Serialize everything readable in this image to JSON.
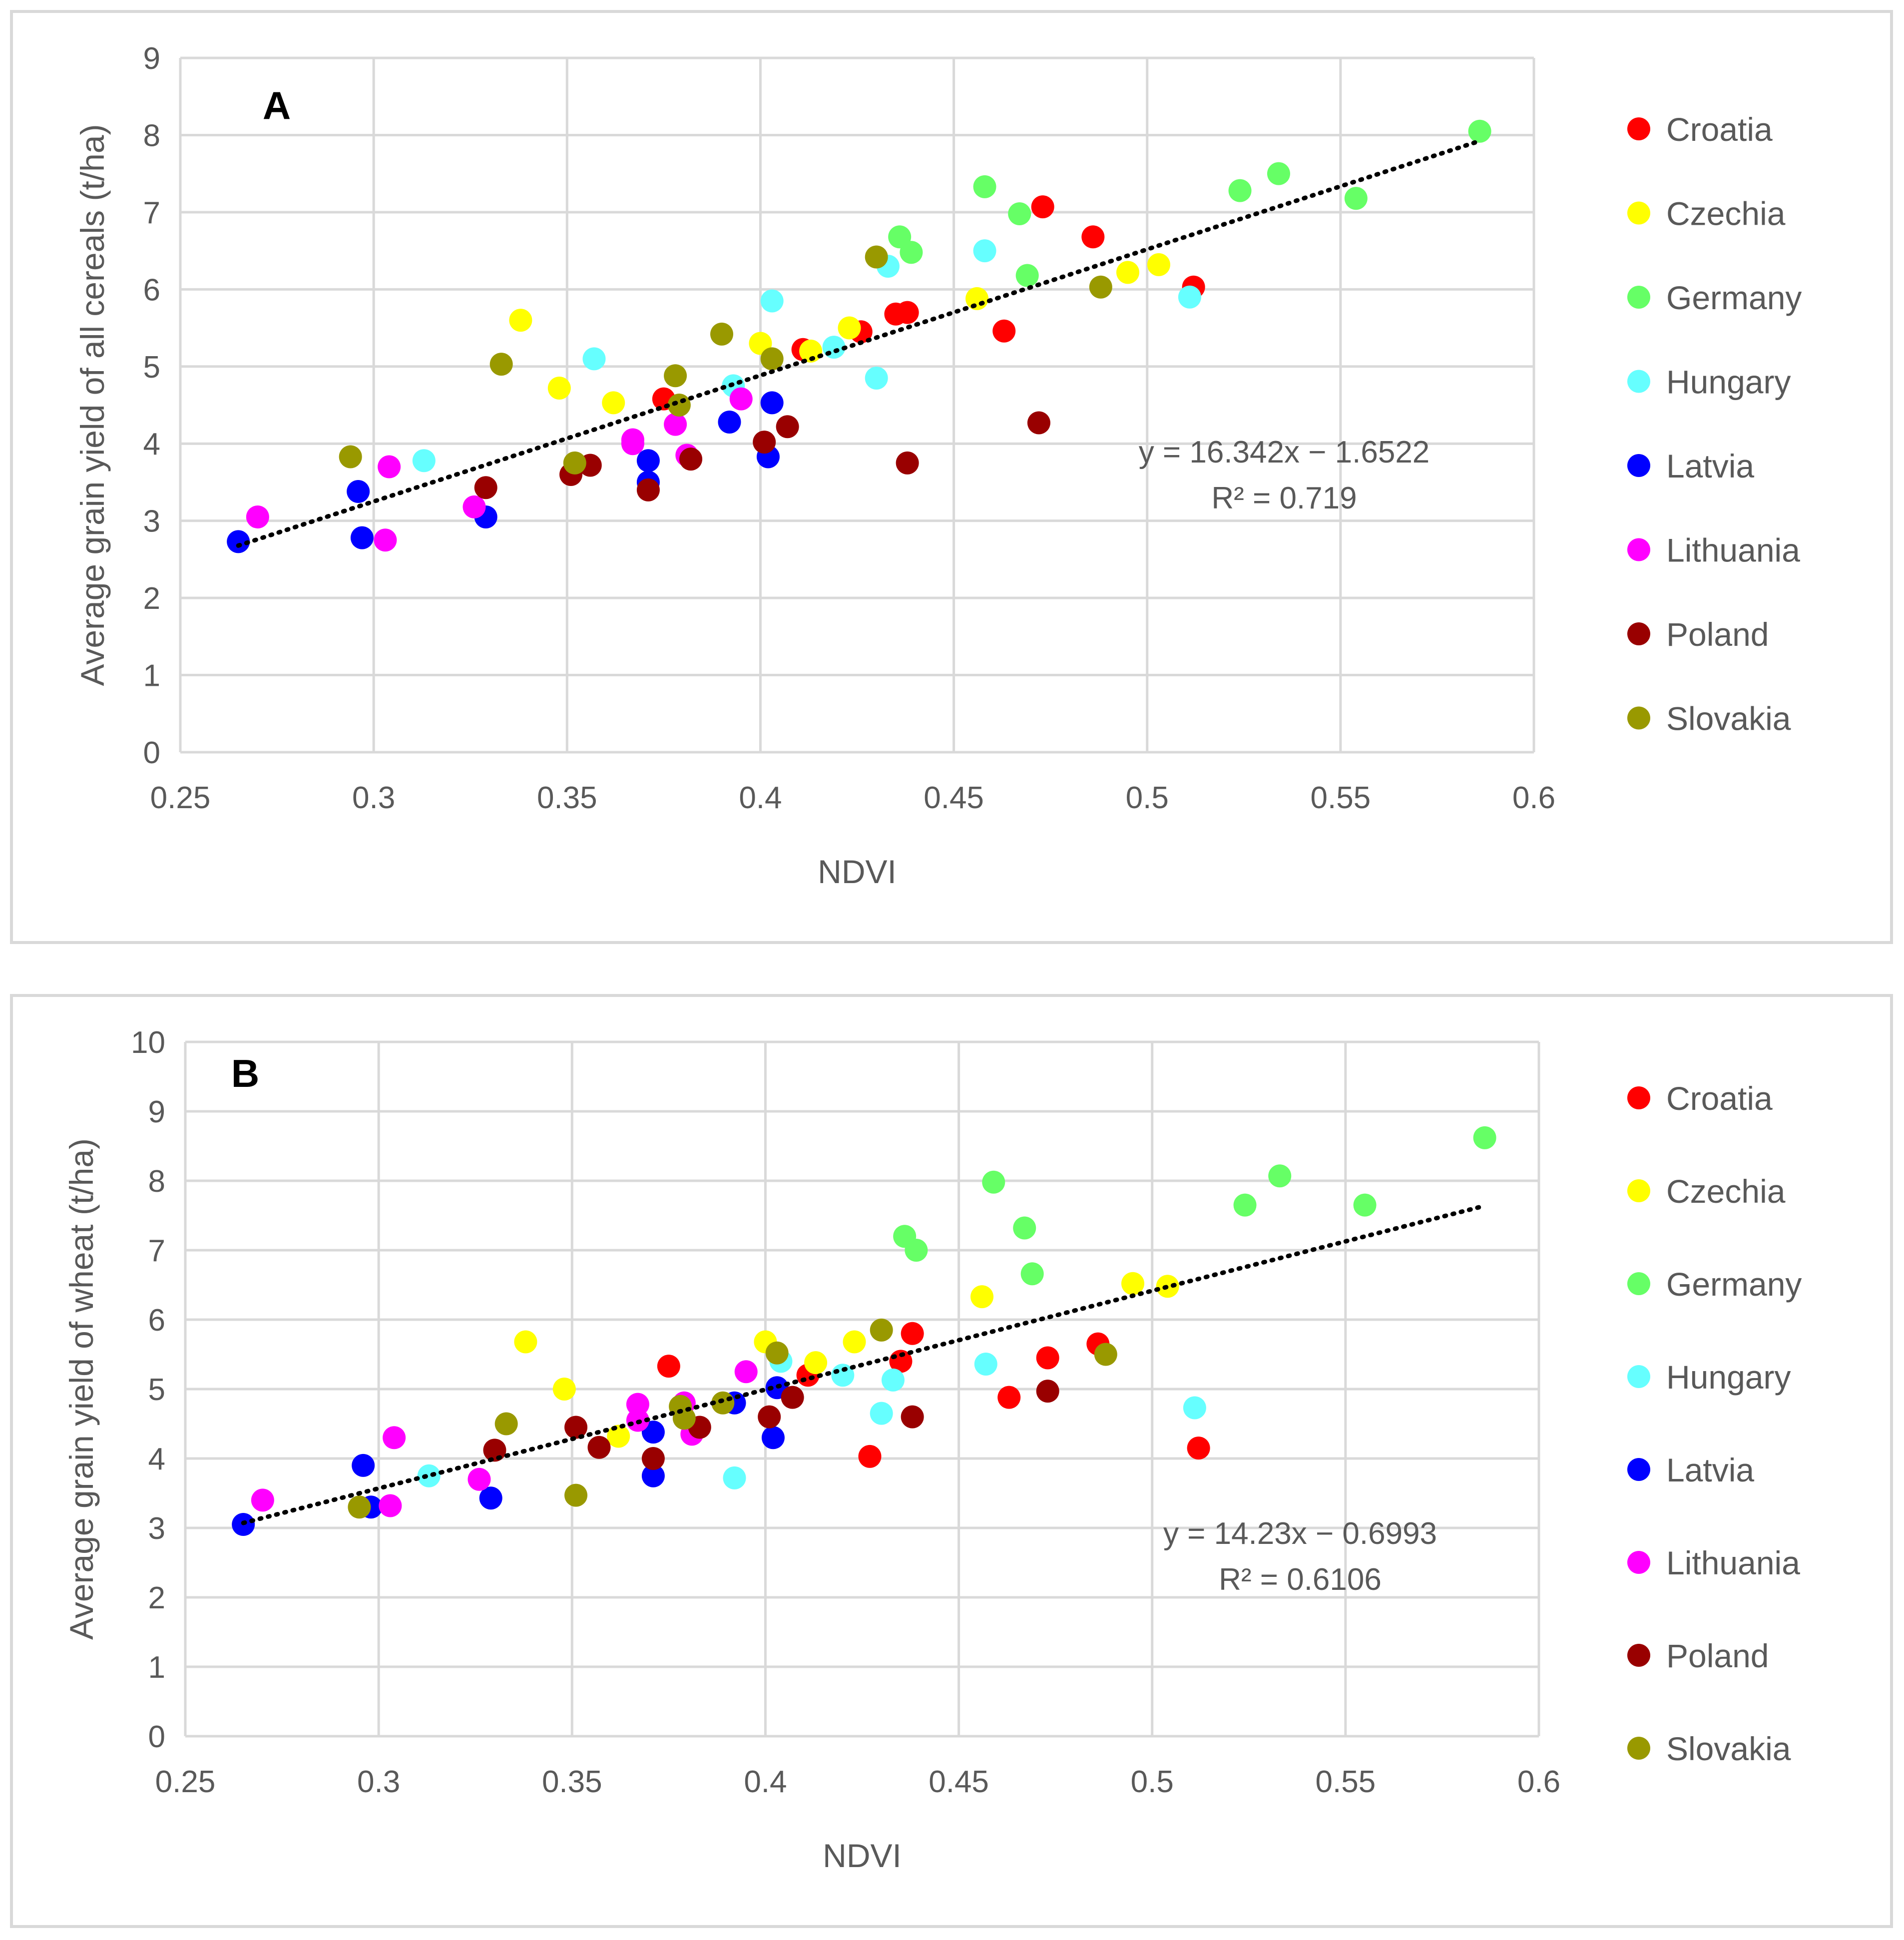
{
  "colors": {
    "Croatia": "#ff0000",
    "Czechia": "#ffff00",
    "Germany": "#66ff66",
    "Hungary": "#66ffff",
    "Latvia": "#0000ff",
    "Lithuania": "#ff00ff",
    "Poland": "#990000",
    "Slovakia": "#999900",
    "grid": "#d9d9d9",
    "axis_text": "#595959",
    "trend": "#000000"
  },
  "chart_data": [
    {
      "type": "scatter",
      "panel_label": "A",
      "xlabel": "NDVI",
      "ylabel": "Average grain yield of all cereals (t/ha)",
      "xlim": [
        0.25,
        0.6
      ],
      "ylim": [
        0,
        9
      ],
      "x_ticks": [
        "0.25",
        "0.3",
        "0.35",
        "0.4",
        "0.45",
        "0.5",
        "0.55",
        "0.6"
      ],
      "y_ticks": [
        "0",
        "1",
        "2",
        "3",
        "4",
        "5",
        "6",
        "7",
        "8",
        "9"
      ],
      "grid": "vertical and horizontal",
      "legend_position": "right",
      "trendline": {
        "equation": "y = 16.342x − 1.6522",
        "r2": "R² = 0.719",
        "slope": 16.342,
        "intercept": -1.6522,
        "x_range": [
          0.265,
          0.586
        ]
      },
      "series": [
        {
          "name": "Croatia",
          "points": [
            [
              0.375,
              4.58
            ],
            [
              0.411,
              5.22
            ],
            [
              0.426,
              5.45
            ],
            [
              0.435,
              5.68
            ],
            [
              0.438,
              5.7
            ],
            [
              0.463,
              5.46
            ],
            [
              0.473,
              7.07
            ],
            [
              0.486,
              6.68
            ],
            [
              0.512,
              6.03
            ]
          ]
        },
        {
          "name": "Czechia",
          "points": [
            [
              0.338,
              5.6
            ],
            [
              0.348,
              4.72
            ],
            [
              0.362,
              4.53
            ],
            [
              0.4,
              5.3
            ],
            [
              0.413,
              5.2
            ],
            [
              0.423,
              5.5
            ],
            [
              0.456,
              5.88
            ],
            [
              0.495,
              6.22
            ],
            [
              0.503,
              6.32
            ]
          ]
        },
        {
          "name": "Germany",
          "points": [
            [
              0.436,
              6.68
            ],
            [
              0.439,
              6.48
            ],
            [
              0.458,
              7.33
            ],
            [
              0.467,
              6.98
            ],
            [
              0.469,
              6.18
            ],
            [
              0.524,
              7.28
            ],
            [
              0.534,
              7.5
            ],
            [
              0.554,
              7.18
            ],
            [
              0.586,
              8.05
            ]
          ]
        },
        {
          "name": "Hungary",
          "points": [
            [
              0.313,
              3.78
            ],
            [
              0.357,
              5.1
            ],
            [
              0.393,
              4.75
            ],
            [
              0.403,
              5.85
            ],
            [
              0.419,
              5.25
            ],
            [
              0.43,
              4.85
            ],
            [
              0.433,
              6.3
            ],
            [
              0.458,
              6.5
            ],
            [
              0.511,
              5.9
            ]
          ]
        },
        {
          "name": "Latvia",
          "points": [
            [
              0.265,
              2.73
            ],
            [
              0.296,
              3.38
            ],
            [
              0.297,
              2.78
            ],
            [
              0.329,
              3.05
            ],
            [
              0.371,
              3.78
            ],
            [
              0.371,
              3.5
            ],
            [
              0.392,
              4.28
            ],
            [
              0.402,
              3.83
            ],
            [
              0.403,
              4.53
            ]
          ]
        },
        {
          "name": "Lithuania",
          "points": [
            [
              0.27,
              3.05
            ],
            [
              0.303,
              2.75
            ],
            [
              0.304,
              3.7
            ],
            [
              0.326,
              3.18
            ],
            [
              0.367,
              4.0
            ],
            [
              0.367,
              4.05
            ],
            [
              0.378,
              4.25
            ],
            [
              0.381,
              3.85
            ],
            [
              0.395,
              4.58
            ]
          ]
        },
        {
          "name": "Poland",
          "points": [
            [
              0.329,
              3.43
            ],
            [
              0.351,
              3.6
            ],
            [
              0.356,
              3.72
            ],
            [
              0.371,
              3.4
            ],
            [
              0.382,
              3.8
            ],
            [
              0.401,
              4.02
            ],
            [
              0.407,
              4.22
            ],
            [
              0.438,
              3.75
            ],
            [
              0.472,
              4.27
            ]
          ]
        },
        {
          "name": "Slovakia",
          "points": [
            [
              0.294,
              3.83
            ],
            [
              0.333,
              5.03
            ],
            [
              0.352,
              3.75
            ],
            [
              0.378,
              4.88
            ],
            [
              0.379,
              4.5
            ],
            [
              0.39,
              5.42
            ],
            [
              0.403,
              5.1
            ],
            [
              0.43,
              6.42
            ],
            [
              0.488,
              6.03
            ]
          ]
        }
      ]
    },
    {
      "type": "scatter",
      "panel_label": "B",
      "xlabel": "NDVI",
      "ylabel": "Average grain yield of wheat (t/ha)",
      "xlim": [
        0.25,
        0.6
      ],
      "ylim": [
        0,
        10
      ],
      "x_ticks": [
        "0.25",
        "0.3",
        "0.35",
        "0.4",
        "0.45",
        "0.5",
        "0.55",
        "0.6"
      ],
      "y_ticks": [
        "0",
        "1",
        "2",
        "3",
        "4",
        "5",
        "6",
        "7",
        "8",
        "9",
        "10"
      ],
      "grid": "vertical and horizontal",
      "legend_position": "right",
      "trendline": {
        "equation": "y = 14.23x − 0.6993",
        "r2": "R² = 0.6106",
        "slope": 14.23,
        "intercept": -0.6993,
        "x_range": [
          0.265,
          0.586
        ]
      },
      "series": [
        {
          "name": "Croatia",
          "points": [
            [
              0.375,
              5.33
            ],
            [
              0.411,
              5.2
            ],
            [
              0.427,
              4.03
            ],
            [
              0.435,
              5.4
            ],
            [
              0.438,
              5.8
            ],
            [
              0.463,
              4.88
            ],
            [
              0.473,
              5.45
            ],
            [
              0.486,
              5.65
            ],
            [
              0.512,
              4.15
            ]
          ]
        },
        {
          "name": "Czechia",
          "points": [
            [
              0.338,
              5.68
            ],
            [
              0.348,
              5.0
            ],
            [
              0.362,
              4.32
            ],
            [
              0.4,
              5.68
            ],
            [
              0.413,
              5.38
            ],
            [
              0.423,
              5.68
            ],
            [
              0.456,
              6.33
            ],
            [
              0.495,
              6.52
            ],
            [
              0.504,
              6.48
            ]
          ]
        },
        {
          "name": "Germany",
          "points": [
            [
              0.436,
              7.2
            ],
            [
              0.439,
              7.0
            ],
            [
              0.459,
              7.98
            ],
            [
              0.467,
              7.32
            ],
            [
              0.469,
              6.66
            ],
            [
              0.524,
              7.65
            ],
            [
              0.533,
              8.07
            ],
            [
              0.555,
              7.65
            ],
            [
              0.586,
              8.62
            ]
          ]
        },
        {
          "name": "Hungary",
          "points": [
            [
              0.313,
              3.75
            ],
            [
              0.392,
              3.72
            ],
            [
              0.404,
              5.4
            ],
            [
              0.42,
              5.2
            ],
            [
              0.43,
              4.65
            ],
            [
              0.433,
              5.13
            ],
            [
              0.457,
              5.36
            ],
            [
              0.511,
              4.73
            ]
          ]
        },
        {
          "name": "Latvia",
          "points": [
            [
              0.265,
              3.05
            ],
            [
              0.296,
              3.9
            ],
            [
              0.298,
              3.3
            ],
            [
              0.329,
              3.43
            ],
            [
              0.371,
              4.38
            ],
            [
              0.371,
              3.75
            ],
            [
              0.392,
              4.8
            ],
            [
              0.402,
              4.3
            ],
            [
              0.403,
              5.02
            ]
          ]
        },
        {
          "name": "Lithuania",
          "points": [
            [
              0.27,
              3.4
            ],
            [
              0.303,
              3.32
            ],
            [
              0.304,
              4.3
            ],
            [
              0.326,
              3.7
            ],
            [
              0.367,
              4.78
            ],
            [
              0.367,
              4.55
            ],
            [
              0.379,
              4.8
            ],
            [
              0.381,
              4.35
            ],
            [
              0.395,
              5.25
            ]
          ]
        },
        {
          "name": "Poland",
          "points": [
            [
              0.33,
              4.12
            ],
            [
              0.351,
              4.45
            ],
            [
              0.357,
              4.16
            ],
            [
              0.371,
              4.0
            ],
            [
              0.383,
              4.45
            ],
            [
              0.401,
              4.6
            ],
            [
              0.407,
              4.88
            ],
            [
              0.438,
              4.6
            ],
            [
              0.473,
              4.97
            ]
          ]
        },
        {
          "name": "Slovakia",
          "points": [
            [
              0.295,
              3.3
            ],
            [
              0.333,
              4.5
            ],
            [
              0.351,
              3.47
            ],
            [
              0.378,
              4.75
            ],
            [
              0.379,
              4.58
            ],
            [
              0.389,
              4.8
            ],
            [
              0.403,
              5.52
            ],
            [
              0.43,
              5.85
            ],
            [
              0.488,
              5.5
            ]
          ]
        }
      ]
    }
  ]
}
